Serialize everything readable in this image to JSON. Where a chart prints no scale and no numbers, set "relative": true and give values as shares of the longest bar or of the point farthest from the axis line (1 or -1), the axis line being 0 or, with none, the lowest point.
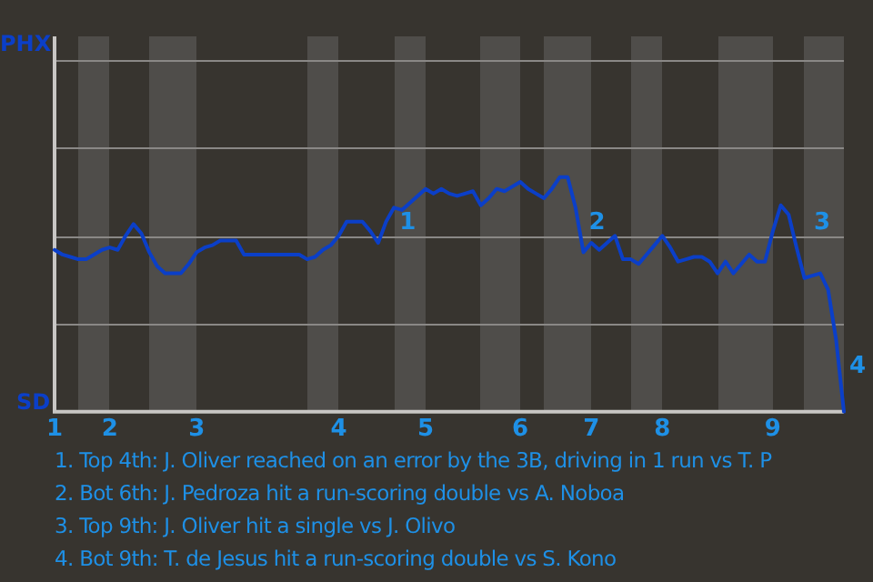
{
  "chart_data": {
    "type": "line",
    "relative": true,
    "categories": [
      "1",
      null,
      null,
      null,
      null,
      null,
      null,
      "2",
      null,
      null,
      null,
      null,
      null,
      null,
      null,
      null,
      null,
      null,
      "3",
      null,
      null,
      null,
      null,
      null,
      null,
      null,
      null,
      null,
      null,
      null,
      null,
      null,
      null,
      null,
      null,
      null,
      "4",
      null,
      null,
      null,
      null,
      null,
      null,
      null,
      null,
      null,
      null,
      "5",
      null,
      null,
      null,
      null,
      null,
      null,
      null,
      null,
      null,
      null,
      null,
      "6",
      null,
      null,
      null,
      null,
      null,
      null,
      null,
      null,
      "7",
      null,
      null,
      null,
      null,
      null,
      null,
      null,
      null,
      "8",
      null,
      null,
      null,
      null,
      null,
      null,
      null,
      null,
      null,
      null,
      null,
      null,
      null,
      "9",
      null,
      null,
      null,
      null,
      null,
      null,
      null,
      null,
      null
    ],
    "series": [
      {
        "color": "#0b3fc8",
        "values": [
          0.69,
          0.67,
          0.66,
          0.65,
          0.65,
          0.67,
          0.69,
          0.7,
          0.69,
          0.75,
          0.8,
          0.76,
          0.68,
          0.62,
          0.59,
          0.59,
          0.59,
          0.63,
          0.68,
          0.7,
          0.71,
          0.73,
          0.73,
          0.73,
          0.67,
          0.67,
          0.67,
          0.67,
          0.67,
          0.67,
          0.67,
          0.67,
          0.65,
          0.66,
          0.69,
          0.71,
          0.75,
          0.81,
          0.81,
          0.81,
          0.77,
          0.72,
          0.81,
          0.87,
          0.86,
          0.89,
          0.92,
          0.95,
          0.93,
          0.95,
          0.93,
          0.92,
          0.93,
          0.94,
          0.88,
          0.91,
          0.95,
          0.94,
          0.96,
          0.98,
          0.95,
          0.93,
          0.91,
          0.95,
          1,
          1,
          0.87,
          0.68,
          0.72,
          0.69,
          0.72,
          0.75,
          0.65,
          0.65,
          0.63,
          0.67,
          0.71,
          0.75,
          0.7,
          0.64,
          0.65,
          0.66,
          0.66,
          0.64,
          0.59,
          0.64,
          0.59,
          0.63,
          0.67,
          0.64,
          0.64,
          0.77,
          0.88,
          0.84,
          0.7,
          0.57,
          0.58,
          0.59,
          0.52,
          0.31,
          0
        ]
      }
    ],
    "marker": "none",
    "line_style": "solid",
    "legend": false,
    "ref_lines": [
      {
        "axis": "y",
        "value": 0.375,
        "color": "#8a8886"
      },
      {
        "axis": "y",
        "value": 0.75,
        "color": "#8a8886"
      },
      {
        "axis": "y",
        "value": 1.125,
        "color": "#8a8886"
      },
      {
        "axis": "y",
        "value": 1.5,
        "color": "#8a8886"
      }
    ],
    "annotations": [
      "PHX",
      "SD",
      "1",
      "2",
      "3",
      "4",
      "1. Top 4th: J. Oliver reached on an error by the 3B, driving in 1 run vs T. P",
      "2. Bot 6th: J. Pedroza hit a run-scoring double vs A. Noboa",
      "3. Top 9th: J. Oliver hit a single vs J. Olivo",
      "4. Bot 9th: T. de Jesus hit a run-scoring double vs S. Kono"
    ]
  }
}
